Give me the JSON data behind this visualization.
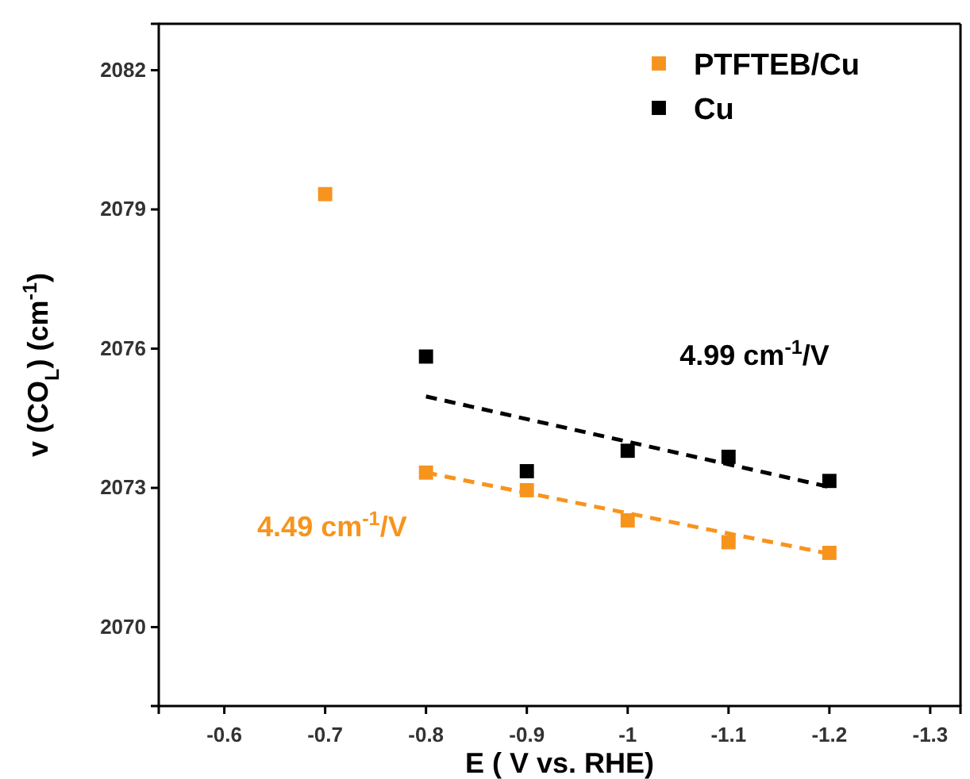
{
  "chart_data": {
    "type": "scatter",
    "xlabel": "E ( V vs. RHE)",
    "ylabel": "v (CO$_{L}$)  (cm$^{-1}$)",
    "xlim": [
      -0.535,
      -1.33
    ],
    "ylim": [
      2068.3,
      2083
    ],
    "xticks": [
      -0.6,
      -0.7,
      -0.8,
      -0.9,
      -1.0,
      -1.1,
      -1.2,
      -1.3
    ],
    "yticks": [
      2070,
      2073,
      2076,
      2079,
      2082
    ],
    "legend": "top right",
    "marker": "square",
    "grid": false,
    "series": [
      {
        "name": "PTFTEB/Cu",
        "color": "#f7941d",
        "x": [
          -0.7,
          -0.8,
          -0.9,
          -1.0,
          -1.1,
          -1.2
        ],
        "values": [
          2079.33,
          2073.33,
          2072.95,
          2072.3,
          2071.83,
          2071.6
        ]
      },
      {
        "name": "Cu",
        "color": "#000000",
        "x": [
          -0.8,
          -0.9,
          -1.0,
          -1.1,
          -1.2
        ],
        "values": [
          2075.83,
          2073.36,
          2073.8,
          2073.67,
          2073.15
        ]
      },
      {
        "type": "line",
        "line_style": "dashed",
        "marker": "none",
        "color": "#f7941d",
        "x": [
          -0.8,
          -1.2
        ],
        "values": [
          2073.33,
          2071.58
        ]
      },
      {
        "type": "line",
        "line_style": "dashed",
        "marker": "none",
        "color": "#000000",
        "x": [
          -0.8,
          -1.2
        ],
        "values": [
          2074.97,
          2073.02
        ]
      }
    ],
    "annotations": [
      "4.49 cm$^{-1}$/V",
      "4.99 cm$^{-1}$/V"
    ]
  }
}
